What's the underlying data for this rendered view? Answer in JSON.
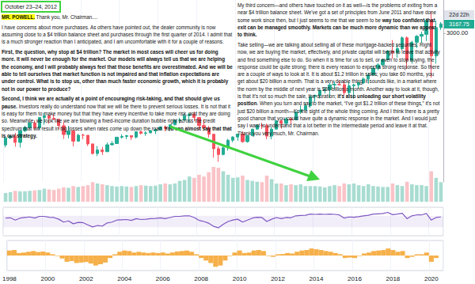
{
  "document": {
    "date": "October 23–24, 2012",
    "left": [
      [
        {
          "text": "MR. POWELL.",
          "bold": true,
          "highlight": true
        },
        {
          "text": " Thank you, Mr. Chairman...."
        }
      ],
      [
        {
          "text": "I have concerns about more purchases. As others have pointed out, the dealer community is now assuming close to a $4 trillion balance sheet and purchases through the first quarter of 2014. I admit that is a much stronger reaction than I anticipated, and I am uncomfortable with it for a couple of reasons."
        }
      ],
      [
        {
          "text": "First, the question, why stop at $4 trillion? The market in most cases will cheer us for doing more. It will never be enough for the market. Our models will always tell us that we are helping the economy, and I will probably always feel that those benefits are overestimated. And we will be able to tell ourselves that market function is not impaired and that inflation expectations are under control. What is to stop us, other than much faster economic growth, which it is probably not in our power to produce?",
          "bold": true
        }
      ],
      [
        {
          "text": "Second, I think we are actually at a point of encouraging risk-taking, and that should give us pause.",
          "bold": true
        },
        {
          "text": " Investors really do understand now that we will be there to prevent serious losses. It is not that it is easy for them to make money but that they have every incentive to take more risk, and they are doing so. Meanwhile, we look like we are blowing a fixed-income duration bubble right across the credit spectrum that will result in big losses when rates come up down the road. "
        },
        {
          "text": "You can almost say that that is our strategy.",
          "bold": true
        }
      ]
    ],
    "right": [
      [
        {
          "text": "My third concern—and others have touched on it as well—is the problems of exiting from a near $4 trillion balance sheet. We've got a set of principles from June 2011 and have done some work since then, but I just seems to me that we seem to be "
        },
        {
          "text": "way too confident that exit can be managed smoothly. Markets can be much more dynamic than we appear to think.",
          "bold": true
        }
      ],
      [
        {
          "text": "Take selling—we are talking about selling all of these mortgage-backed securities. Right now, we are buying the market, effectively, and private capital will begin to leave that activity and find something else to do. So when it is time for us to sell, or even to stop buying, the response could be quite strong; there is every reason to expect a strong response. So there are a couple of ways to look at it. It is about $1.2 trillion in sales; you take 60 months, you get about $20 billion a month. That is a very doable thing, it sounds like, in a market where the norm by the middle of next year is $80 billion a month. Another way to look at it, though, is that it's not so much the sale, the duration; "
        },
        {
          "text": "it's also unloading our short volatility position",
          "bold": true
        },
        {
          "text": ". When you turn and say to the market, “I've got $1.2 trillion of these things,” it's not just $20 billion a month—it's the sight of the whole thing coming. And I think there is a pretty good chance that you could have quite a dynamic response in the market. And I would just say I want to understand that a lot better in the intermediate period and leave it at that. Thank you very much, Mr. Chairman."
        }
      ]
    ]
  },
  "chart_data": {
    "type": "candlestick",
    "categories": [
      "1998",
      null,
      null,
      null,
      null,
      null,
      null,
      null,
      "2000",
      null,
      null,
      null,
      null,
      null,
      null,
      null,
      "2002",
      null,
      null,
      null,
      null,
      null,
      null,
      null,
      "2004",
      null,
      null,
      null,
      null,
      null,
      null,
      null,
      "2006",
      null,
      null,
      null,
      null,
      null,
      null,
      null,
      "2008",
      null,
      null,
      null,
      null,
      null,
      null,
      null,
      "2010",
      null,
      null,
      null,
      null,
      null,
      null,
      null,
      "2012",
      null,
      null,
      null,
      null,
      null,
      null,
      null,
      "2014",
      null,
      null,
      null,
      null,
      null,
      null,
      null,
      "2016",
      null,
      null,
      null,
      null,
      null,
      null,
      null,
      "2018",
      null,
      null,
      null,
      null,
      null,
      null,
      null,
      "2020",
      null,
      null
    ],
    "open": [
      970,
      1101,
      1133,
      1017,
      1229,
      1286,
      1372,
      1282,
      1469,
      1498,
      1454,
      1436,
      1320,
      1160,
      1224,
      1040,
      1148,
      1147,
      990,
      815,
      880,
      848,
      975,
      996,
      1112,
      1126,
      1141,
      1114,
      1212,
      1181,
      1191,
      1228,
      1248,
      1295,
      1270,
      1336,
      1418,
      1421,
      1503,
      1527,
      1468,
      1323,
      1280,
      1166,
      903,
      798,
      919,
      1057,
      1115,
      1169,
      1031,
      1141,
      1258,
      1326,
      1321,
      1131,
      1258,
      1408,
      1362,
      1441,
      1426,
      1569,
      1606,
      1682,
      1848,
      1872,
      1960,
      1972,
      2059,
      2068,
      2063,
      1920,
      2044,
      2060,
      2099,
      2168,
      2239,
      2363,
      2423,
      2519,
      2674,
      2641,
      2718,
      2914,
      2507,
      2834,
      2942,
      2977,
      3231,
      2585,
      3100
    ],
    "high": [
      1105,
      1139,
      1190,
      1245,
      1316,
      1384,
      1421,
      1473,
      1553,
      1527,
      1530,
      1437,
      1384,
      1316,
      1230,
      1173,
      1176,
      1147,
      994,
      954,
      935,
      1015,
      1040,
      1112,
      1163,
      1150,
      1141,
      1217,
      1229,
      1219,
      1245,
      1275,
      1310,
      1326,
      1340,
      1431,
      1461,
      1540,
      1556,
      1576,
      1471,
      1440,
      1314,
      1167,
      944,
      957,
      1080,
      1130,
      1180,
      1220,
      1150,
      1263,
      1344,
      1371,
      1356,
      1293,
      1422,
      1422,
      1475,
      1470,
      1570,
      1687,
      1730,
      1849,
      1884,
      1968,
      2019,
      2094,
      2119,
      2135,
      2132,
      2116,
      2081,
      2120,
      2194,
      2278,
      2401,
      2454,
      2520,
      2695,
      2873,
      2791,
      2941,
      2940,
      2860,
      2964,
      3028,
      3248,
      3394,
      3233,
      3200
    ],
    "low": [
      927,
      1075,
      940,
      923,
      1205,
      1281,
      1268,
      1247,
      1339,
      1356,
      1421,
      1254,
      1081,
      1091,
      945,
      1038,
      1074,
      952,
      797,
      768,
      789,
      847,
      960,
      990,
      1087,
      1076,
      1060,
      1090,
      1163,
      1137,
      1183,
      1168,
      1245,
      1219,
      1224,
      1327,
      1364,
      1416,
      1370,
      1406,
      1256,
      1272,
      1106,
      741,
      667,
      783,
      869,
      1020,
      1045,
      1011,
      1011,
      1131,
      1250,
      1259,
      1075,
      1074,
      1258,
      1267,
      1325,
      1343,
      1426,
      1536,
      1604,
      1646,
      1737,
      1814,
      1904,
      1821,
      1981,
      2048,
      1867,
      1872,
      1810,
      1992,
      2074,
      2084,
      2233,
      2322,
      2406,
      2520,
      2533,
      2553,
      2691,
      2347,
      2444,
      2729,
      2822,
      2856,
      2192,
      2447,
      3059
    ],
    "close": [
      1101,
      1133,
      1017,
      1229,
      1286,
      1372,
      1282,
      1469,
      1498,
      1454,
      1436,
      1320,
      1160,
      1224,
      1040,
      1148,
      1147,
      990,
      815,
      880,
      848,
      975,
      996,
      1112,
      1126,
      1141,
      1114,
      1212,
      1181,
      1191,
      1228,
      1248,
      1295,
      1270,
      1336,
      1418,
      1421,
      1503,
      1527,
      1468,
      1323,
      1280,
      1166,
      903,
      798,
      919,
      1057,
      1115,
      1169,
      1031,
      1141,
      1258,
      1326,
      1321,
      1131,
      1258,
      1408,
      1362,
      1441,
      1426,
      1569,
      1606,
      1682,
      1848,
      1872,
      1960,
      1972,
      2059,
      2068,
      2063,
      1920,
      2044,
      2060,
      2099,
      2168,
      2239,
      2363,
      2423,
      2519,
      2674,
      2641,
      2718,
      2914,
      2507,
      2834,
      2942,
      2977,
      3231,
      2585,
      3100,
      3167.75
    ],
    "colors": [
      "#22ab94",
      "#f7525f"
    ],
    "ylim": [
      300,
      3600
    ],
    "yticks": [
      {
        "value": 3000,
        "label": "3000.00"
      }
    ],
    "tick_labels": "y",
    "countdown_label": "22d 22h",
    "panels": [
      {
        "type": "bar",
        "values": [
          20,
          22,
          25,
          24,
          24,
          25,
          26,
          27,
          30,
          28,
          27,
          30,
          33,
          32,
          36,
          34,
          36,
          38,
          45,
          42,
          40,
          38,
          36,
          35,
          36,
          35,
          34,
          36,
          38,
          37,
          36,
          37,
          40,
          42,
          40,
          42,
          48,
          50,
          58,
          55,
          62,
          58,
          68,
          80,
          78,
          70,
          62,
          55,
          56,
          60,
          50,
          48,
          46,
          45,
          60,
          52,
          42,
          42,
          38,
          40,
          38,
          40,
          36,
          36,
          36,
          35,
          33,
          36,
          38,
          36,
          42,
          40,
          42,
          38,
          36,
          40,
          36,
          35,
          34,
          34,
          42,
          38,
          36,
          46,
          40,
          38,
          38,
          36,
          70,
          55,
          45
        ],
        "colors": [
          "#a8dcd1",
          "#f9c3c7"
        ],
        "ylim": [
          0,
          100
        ],
        "tick_labels": false
      },
      {
        "type": "line",
        "values": [
          62,
          63,
          55,
          62,
          64,
          66,
          62,
          68,
          68,
          65,
          64,
          58,
          48,
          52,
          42,
          47,
          46,
          38,
          31,
          36,
          34,
          45,
          48,
          55,
          56,
          57,
          54,
          60,
          57,
          58,
          60,
          61,
          63,
          60,
          64,
          68,
          68,
          70,
          70,
          64,
          54,
          50,
          44,
          33,
          28,
          40,
          50,
          55,
          58,
          48,
          55,
          62,
          65,
          64,
          50,
          58,
          64,
          60,
          64,
          63,
          70,
          71,
          72,
          76,
          75,
          76,
          75,
          76,
          75,
          73,
          62,
          66,
          65,
          67,
          70,
          72,
          76,
          77,
          78,
          82,
          74,
          76,
          79,
          60,
          70,
          73,
          73,
          78,
          55,
          64,
          66
        ],
        "color": "#7e57c2",
        "band": [
          30,
          70
        ],
        "ylim": [
          0,
          100
        ],
        "tick_labels": false
      },
      {
        "type": "bar",
        "values": [
          20,
          22,
          10,
          12,
          15,
          18,
          14,
          16,
          12,
          5,
          -2,
          -12,
          -25,
          -22,
          -30,
          -28,
          -26,
          -32,
          -40,
          -35,
          -28,
          -10,
          5,
          15,
          20,
          18,
          12,
          15,
          12,
          10,
          12,
          10,
          12,
          8,
          12,
          16,
          18,
          20,
          15,
          5,
          -10,
          -20,
          -30,
          -45,
          -40,
          -20,
          -2,
          12,
          20,
          10,
          12,
          20,
          22,
          18,
          -2,
          -5,
          5,
          6,
          10,
          8,
          15,
          20,
          22,
          28,
          25,
          22,
          18,
          15,
          10,
          5,
          -10,
          -8,
          -10,
          -2,
          8,
          12,
          18,
          20,
          22,
          28,
          22,
          15,
          18,
          -10,
          -5,
          5,
          5,
          12,
          -25,
          -10,
          0
        ],
        "color": "#f6b04a",
        "ylim": [
          -60,
          60
        ],
        "tick_labels": "x"
      }
    ]
  }
}
